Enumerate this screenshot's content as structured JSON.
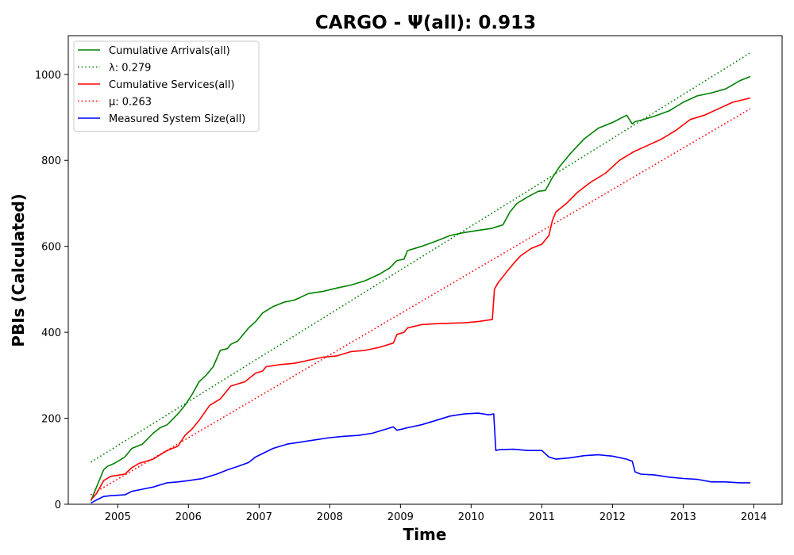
{
  "chart_data": {
    "type": "line",
    "title": "CARGO -  Ψ(all): 0.913",
    "xlabel": "Time",
    "ylabel": "PBIs (Calculated)",
    "xlim": [
      2004.3,
      2014.4
    ],
    "ylim": [
      0,
      1090
    ],
    "x_ticks": [
      2005,
      2006,
      2007,
      2008,
      2009,
      2010,
      2011,
      2012,
      2013,
      2014
    ],
    "x_tick_labels": [
      "2005",
      "2006",
      "2007",
      "2008",
      "2009",
      "2010",
      "2011",
      "2012",
      "2013",
      "2014"
    ],
    "y_ticks": [
      0,
      200,
      400,
      600,
      800,
      1000
    ],
    "y_tick_labels": [
      "0",
      "200",
      "400",
      "600",
      "800",
      "1000"
    ],
    "grid": false,
    "legend_position": "top-left",
    "series": [
      {
        "name": "Cumulative Arrivals(all)",
        "color": "#008000",
        "style": "solid",
        "x": [
          2004.62,
          2004.7,
          2004.8,
          2004.85,
          2004.95,
          2005.1,
          2005.2,
          2005.35,
          2005.5,
          2005.6,
          2005.7,
          2005.85,
          2005.95,
          2006.05,
          2006.15,
          2006.25,
          2006.35,
          2006.45,
          2006.55,
          2006.6,
          2006.7,
          2006.85,
          2006.95,
          2007.05,
          2007.2,
          2007.35,
          2007.5,
          2007.7,
          2007.9,
          2008.1,
          2008.3,
          2008.5,
          2008.7,
          2008.85,
          2008.95,
          2009.05,
          2009.1,
          2009.3,
          2009.5,
          2009.7,
          2009.9,
          2010.1,
          2010.3,
          2010.35,
          2010.45,
          2010.55,
          2010.65,
          2010.8,
          2010.95,
          2011.05,
          2011.15,
          2011.25,
          2011.4,
          2011.6,
          2011.8,
          2012.0,
          2012.2,
          2012.28,
          2012.32,
          2012.4,
          2012.6,
          2012.8,
          2013.0,
          2013.2,
          2013.4,
          2013.6,
          2013.8,
          2013.95
        ],
        "values": [
          8,
          40,
          80,
          88,
          95,
          110,
          130,
          140,
          165,
          178,
          185,
          210,
          230,
          255,
          285,
          300,
          320,
          358,
          362,
          372,
          380,
          410,
          425,
          445,
          460,
          470,
          475,
          490,
          495,
          503,
          510,
          520,
          535,
          550,
          567,
          570,
          590,
          600,
          612,
          625,
          632,
          637,
          642,
          645,
          650,
          680,
          700,
          715,
          728,
          730,
          760,
          785,
          815,
          850,
          875,
          888,
          905,
          885,
          890,
          893,
          903,
          915,
          935,
          950,
          957,
          966,
          985,
          995
        ]
      },
      {
        "name": "λ: 0.279",
        "color": "#008000",
        "style": "dotted",
        "x": [
          2004.62,
          2013.95
        ],
        "values": [
          98,
          1050
        ]
      },
      {
        "name": "Cumulative Services(all)",
        "color": "#ff0000",
        "style": "solid",
        "x": [
          2004.62,
          2004.7,
          2004.8,
          2004.9,
          2005.1,
          2005.2,
          2005.3,
          2005.5,
          2005.7,
          2005.85,
          2005.95,
          2006.05,
          2006.15,
          2006.3,
          2006.45,
          2006.55,
          2006.6,
          2006.8,
          2006.95,
          2007.05,
          2007.1,
          2007.3,
          2007.5,
          2007.7,
          2007.9,
          2008.1,
          2008.3,
          2008.5,
          2008.7,
          2008.9,
          2008.95,
          2009.05,
          2009.1,
          2009.3,
          2009.5,
          2009.7,
          2009.9,
          2010.1,
          2010.3,
          2010.33,
          2010.38,
          2010.5,
          2010.6,
          2010.7,
          2010.85,
          2011.0,
          2011.1,
          2011.15,
          2011.2,
          2011.35,
          2011.5,
          2011.7,
          2011.9,
          2012.1,
          2012.3,
          2012.5,
          2012.7,
          2012.9,
          2013.1,
          2013.3,
          2013.5,
          2013.7,
          2013.95
        ],
        "values": [
          10,
          25,
          55,
          65,
          70,
          85,
          95,
          105,
          125,
          135,
          160,
          175,
          195,
          230,
          245,
          265,
          275,
          285,
          305,
          310,
          320,
          325,
          328,
          335,
          342,
          345,
          355,
          358,
          365,
          375,
          395,
          400,
          410,
          418,
          420,
          421,
          422,
          425,
          430,
          500,
          515,
          540,
          560,
          578,
          595,
          605,
          625,
          660,
          680,
          700,
          725,
          750,
          770,
          800,
          820,
          835,
          850,
          870,
          895,
          905,
          920,
          935,
          945
        ]
      },
      {
        "name": "μ: 0.263",
        "color": "#ff0000",
        "style": "dotted",
        "x": [
          2004.62,
          2013.95
        ],
        "values": [
          22,
          920
        ]
      },
      {
        "name": "Measured System Size(all)",
        "color": "#0000ff",
        "style": "solid",
        "x": [
          2004.62,
          2004.7,
          2004.8,
          2004.9,
          2005.1,
          2005.2,
          2005.35,
          2005.5,
          2005.7,
          2005.85,
          2006.0,
          2006.2,
          2006.4,
          2006.55,
          2006.7,
          2006.85,
          2006.95,
          2007.05,
          2007.2,
          2007.4,
          2007.6,
          2007.8,
          2008.0,
          2008.2,
          2008.4,
          2008.6,
          2008.8,
          2008.9,
          2008.95,
          2009.1,
          2009.3,
          2009.5,
          2009.7,
          2009.9,
          2010.1,
          2010.25,
          2010.32,
          2010.35,
          2010.4,
          2010.6,
          2010.8,
          2011.0,
          2011.1,
          2011.2,
          2011.4,
          2011.6,
          2011.8,
          2012.0,
          2012.2,
          2012.28,
          2012.32,
          2012.4,
          2012.6,
          2012.8,
          2013.0,
          2013.2,
          2013.4,
          2013.6,
          2013.8,
          2013.95
        ],
        "values": [
          3,
          10,
          18,
          20,
          22,
          30,
          35,
          40,
          50,
          52,
          55,
          60,
          70,
          80,
          88,
          97,
          110,
          118,
          130,
          140,
          145,
          150,
          155,
          158,
          160,
          165,
          175,
          180,
          172,
          178,
          185,
          195,
          205,
          210,
          212,
          208,
          210,
          125,
          127,
          128,
          125,
          125,
          110,
          105,
          108,
          113,
          115,
          112,
          105,
          100,
          75,
          70,
          68,
          63,
          60,
          58,
          52,
          52,
          50,
          50
        ]
      }
    ]
  }
}
